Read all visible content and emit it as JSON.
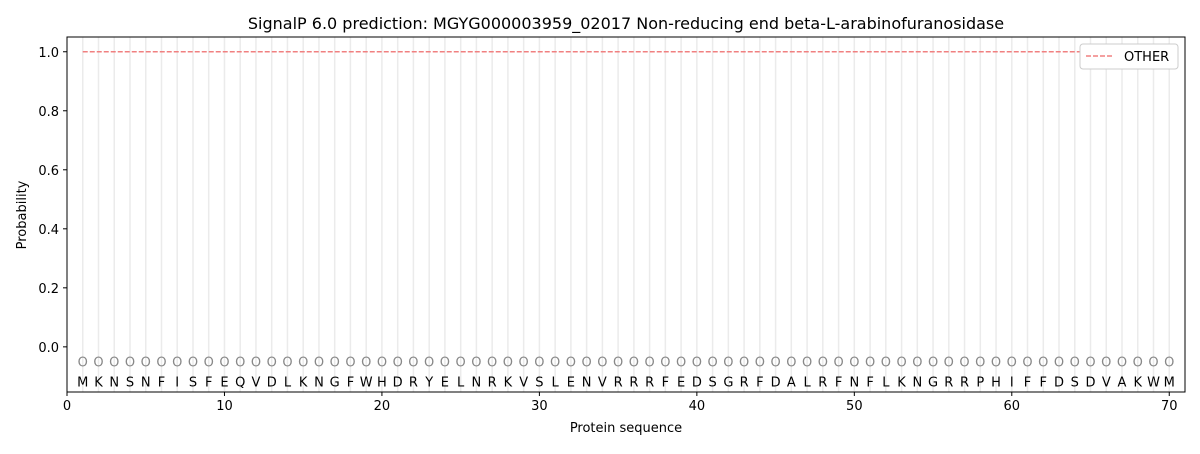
{
  "chart_data": {
    "type": "line",
    "title": "SignalP 6.0 prediction: MGYG000003959_02017 Non-reducing end beta-L-arabinofuranosidase",
    "xlabel": "Protein sequence",
    "ylabel": "Probability",
    "xlim": [
      0,
      71
    ],
    "ylim": [
      -0.153,
      1.05
    ],
    "xticks": [
      0,
      10,
      20,
      30,
      40,
      50,
      60,
      70
    ],
    "yticks": [
      0.0,
      0.2,
      0.4,
      0.6,
      0.8,
      1.0
    ],
    "ytick_labels": [
      "0.0",
      "0.2",
      "0.4",
      "0.6",
      "0.8",
      "1.0"
    ],
    "legend_position": "top-right",
    "grid": "vertical lines at each residue",
    "sequence": [
      "M",
      "K",
      "N",
      "S",
      "N",
      "F",
      "I",
      "S",
      "F",
      "E",
      "Q",
      "V",
      "D",
      "L",
      "K",
      "N",
      "G",
      "F",
      "W",
      "H",
      "D",
      "R",
      "Y",
      "E",
      "L",
      "N",
      "R",
      "K",
      "V",
      "S",
      "L",
      "E",
      "N",
      "V",
      "R",
      "R",
      "R",
      "F",
      "E",
      "D",
      "S",
      "G",
      "R",
      "F",
      "D",
      "A",
      "L",
      "R",
      "F",
      "N",
      "F",
      "L",
      "K",
      "N",
      "G",
      "R",
      "R",
      "P",
      "H",
      "I",
      "F",
      "F",
      "D",
      "S",
      "D",
      "V",
      "A",
      "K",
      "W",
      "M"
    ],
    "predicted_labels": "OOOOOOOOOOOOOOOOOOOOOOOOOOOOOOOOOOOOOOOOOOOOOOOOOOOOOOOOOOOOOOOOOOOOOO",
    "series": [
      {
        "name": "OTHER",
        "color": "#f08080",
        "style": "dashed",
        "x_range": [
          1,
          70
        ],
        "value": 1.0
      }
    ]
  }
}
